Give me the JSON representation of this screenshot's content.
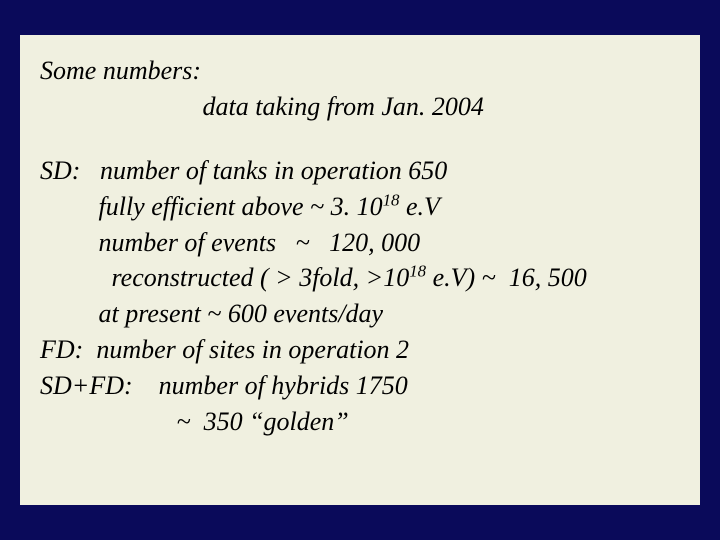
{
  "background_color": "#0a0a5a",
  "slide_background_color": "#f0f0e0",
  "text_color": "#000000",
  "font_family": "Times New Roman, serif",
  "font_style": "italic",
  "font_size_pt": 26,
  "title": {
    "line1": "Some numbers:",
    "line2_indent": "                         ",
    "line2": "data taking from Jan. 2004"
  },
  "body": {
    "l1_label": "SD:   ",
    "l1_text": "number of tanks in operation 650",
    "l2_indent": "         ",
    "l2_text_a": "fully efficient above ~ 3. 10",
    "l2_sup": "18",
    "l2_text_b": " e.V",
    "l3_indent": "         ",
    "l3_text": "number of events   ~   120, 000",
    "l4_indent": "           ",
    "l4_text_a": "reconstructed ( > 3fold, >10",
    "l4_sup": "18",
    "l4_text_b": " e.V) ~  16, 500",
    "l5_indent": "         ",
    "l5_text": "at present ~ 600 events/day",
    "l6_label": "FD:  ",
    "l6_text": "number of sites in operation 2",
    "l7_label": "SD+FD:    ",
    "l7_text": "number of hybrids 1750",
    "l8_indent": "                     ",
    "l8_text": "~  350 “golden”"
  }
}
